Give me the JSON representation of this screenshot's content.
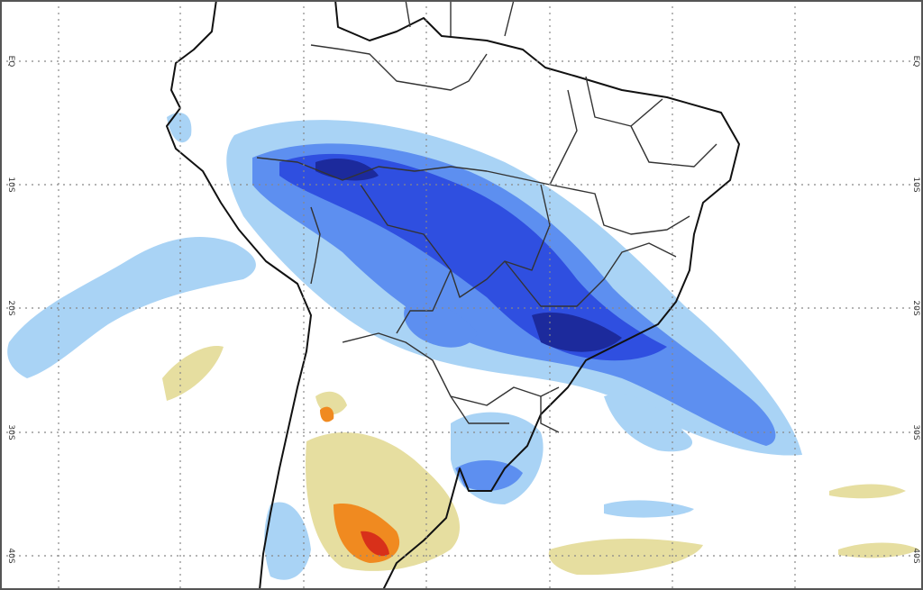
{
  "map": {
    "lat_labels": [
      "EQ",
      "10S",
      "20S",
      "30S",
      "40S"
    ]
  }
}
